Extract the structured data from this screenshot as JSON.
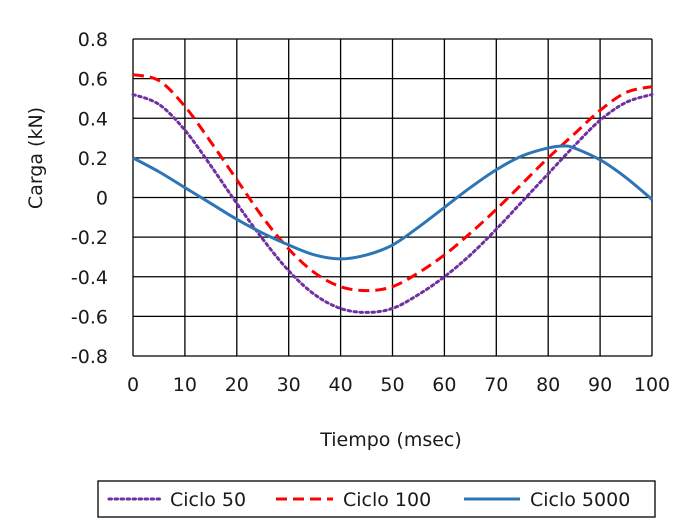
{
  "chart_data": {
    "type": "line",
    "title": "",
    "xlabel": "Tiempo (msec)",
    "ylabel": "Carga (kN)",
    "xlim": [
      0,
      100
    ],
    "ylim": [
      -0.8,
      0.8
    ],
    "x_ticks": [
      0,
      10,
      20,
      30,
      40,
      50,
      60,
      70,
      80,
      90,
      100
    ],
    "x_tick_labels": [
      "0",
      "10",
      "20",
      "30",
      "40",
      "50",
      "60",
      "70",
      "80",
      "90",
      "100"
    ],
    "y_ticks": [
      0.8,
      0.6,
      0.4,
      0.2,
      0,
      -0.2,
      -0.4,
      -0.6,
      -0.8
    ],
    "y_tick_labels": [
      "0.8",
      "0.6",
      "0.4",
      "0.2",
      "0",
      "-0.2",
      "-0.4",
      "-0.6",
      "-0.8"
    ],
    "grid": true,
    "legend_position": "bottom",
    "series": [
      {
        "name": "Ciclo 50",
        "color": "#7030a0",
        "style": "dotted",
        "x": [
          0,
          5,
          10,
          15,
          20,
          25,
          30,
          35,
          40,
          45,
          50,
          55,
          60,
          65,
          70,
          75,
          80,
          85,
          90,
          95,
          100
        ],
        "y": [
          0.52,
          0.47,
          0.34,
          0.16,
          -0.03,
          -0.21,
          -0.37,
          -0.49,
          -0.56,
          -0.58,
          -0.56,
          -0.49,
          -0.4,
          -0.29,
          -0.16,
          -0.02,
          0.12,
          0.26,
          0.39,
          0.48,
          0.52
        ]
      },
      {
        "name": "Ciclo 100",
        "color": "#ff0000",
        "style": "dashed",
        "x": [
          0,
          5,
          10,
          15,
          20,
          25,
          30,
          35,
          40,
          45,
          50,
          55,
          60,
          65,
          70,
          75,
          80,
          85,
          90,
          95,
          100
        ],
        "y": [
          0.62,
          0.59,
          0.46,
          0.28,
          0.09,
          -0.1,
          -0.26,
          -0.38,
          -0.45,
          -0.47,
          -0.45,
          -0.38,
          -0.29,
          -0.18,
          -0.06,
          0.07,
          0.2,
          0.32,
          0.44,
          0.53,
          0.56
        ]
      },
      {
        "name": "Ciclo 5000",
        "color": "#2e75b6",
        "style": "solid",
        "x": [
          0,
          5,
          10,
          15,
          20,
          25,
          30,
          35,
          40,
          45,
          50,
          55,
          60,
          65,
          70,
          75,
          80,
          83,
          85,
          90,
          95,
          100
        ],
        "y": [
          0.2,
          0.13,
          0.05,
          -0.03,
          -0.11,
          -0.18,
          -0.24,
          -0.29,
          -0.31,
          -0.29,
          -0.24,
          -0.15,
          -0.05,
          0.05,
          0.14,
          0.21,
          0.25,
          0.26,
          0.25,
          0.19,
          0.1,
          -0.01
        ]
      }
    ]
  }
}
